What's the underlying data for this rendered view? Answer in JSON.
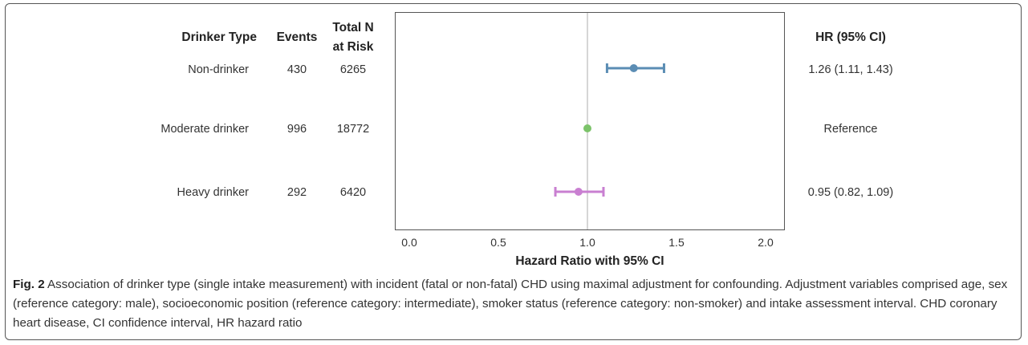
{
  "columns": {
    "drinker_type": "Drinker Type",
    "events": "Events",
    "total_n_line1": "Total N",
    "total_n_line2": "at Risk",
    "hr": "HR (95% CI)"
  },
  "rows": [
    {
      "drinker_type": "Non-drinker",
      "events": "430",
      "total_n": "6265",
      "hr_text": "1.26 (1.11, 1.43)"
    },
    {
      "drinker_type": "Moderate drinker",
      "events": "996",
      "total_n": "18772",
      "hr_text": "Reference"
    },
    {
      "drinker_type": "Heavy drinker",
      "events": "292",
      "total_n": "6420",
      "hr_text": "0.95 (0.82, 1.09)"
    }
  ],
  "chart_data": {
    "type": "scatter",
    "xlabel": "Hazard Ratio with 95% CI",
    "xlim": [
      0.0,
      2.0
    ],
    "xticks": [
      "0.0",
      "0.5",
      "1.0",
      "1.5",
      "2.0"
    ],
    "reference_line": 1.0,
    "grid": false,
    "categories": [
      "Non-drinker",
      "Moderate drinker",
      "Heavy drinker"
    ],
    "points": [
      {
        "category": "Non-drinker",
        "hr": 1.26,
        "lo": 1.11,
        "hi": 1.43,
        "color": "#5b8db4"
      },
      {
        "category": "Moderate drinker",
        "hr": 1.0,
        "lo": null,
        "hi": null,
        "color": "#7cc36a"
      },
      {
        "category": "Heavy drinker",
        "hr": 0.95,
        "lo": 0.82,
        "hi": 1.09,
        "color": "#c97fd1"
      }
    ]
  },
  "caption": {
    "label": "Fig. 2",
    "text": " Association of drinker type (single intake measurement) with incident (fatal or non-fatal) CHD using maximal adjustment for confounding. Adjustment variables comprised age, sex (reference category: male), socioeconomic position (reference category: intermediate), smoker status (reference category: non-smoker) and intake assessment interval. CHD coronary heart disease, CI confidence interval, HR hazard ratio"
  }
}
